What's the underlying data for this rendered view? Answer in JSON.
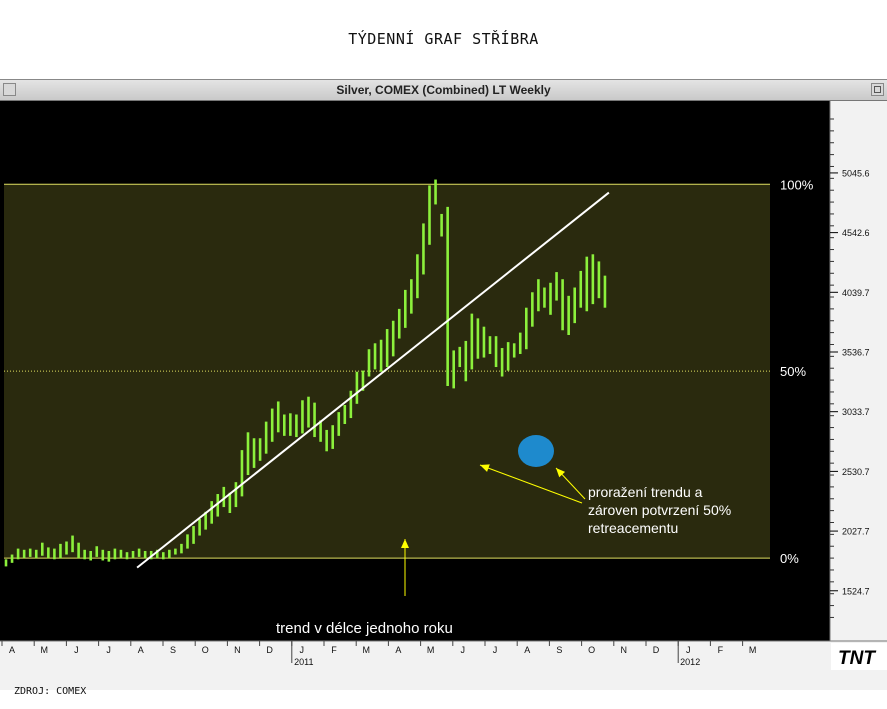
{
  "page": {
    "title": "TÝDENNÍ GRAF STŘÍBRA",
    "source": "ZDROJ: COMEX"
  },
  "chart_header": "Silver, COMEX (Combined) LT Weekly",
  "logo_text": "TNT",
  "colors": {
    "background": "#000000",
    "bars": "#8cf03c",
    "fill": "#2a2a0e",
    "level_lines": "#e0e060",
    "trendline": "#ffffff",
    "annotation": "#ffff00",
    "highlight": "#1e8fd8"
  },
  "annotations": {
    "trend_label": "trend v délce jednoho roku",
    "breakout_line1": "proražení trendu a",
    "breakout_line2": "zároven potvrzení 50%",
    "breakout_line3": "retreacementu"
  },
  "chart_data": {
    "type": "bar",
    "title": "Silver, COMEX (Combined) LT Weekly",
    "xlabel": "",
    "ylabel": "",
    "ylim": [
      1270,
      5500
    ],
    "y_ticks": [
      "5045.6",
      "4542.6",
      "4039.7",
      "3536.7",
      "3033.7",
      "2530.7",
      "2027.7",
      "1524.7"
    ],
    "y_tick_values": [
      5045.6,
      4542.6,
      4039.7,
      3536.7,
      3033.7,
      2530.7,
      2027.7,
      1524.7
    ],
    "x_ticks": [
      "A",
      "M",
      "J",
      "J",
      "A",
      "S",
      "O",
      "N",
      "D",
      "J",
      "F",
      "M",
      "A",
      "M",
      "J",
      "J",
      "A",
      "S",
      "O",
      "N",
      "D",
      "J",
      "F",
      "M"
    ],
    "year_labels": [
      {
        "label": "2011",
        "index": 9
      },
      {
        "label": "2012",
        "index": 21
      }
    ],
    "retracement_levels": [
      {
        "label": "100%",
        "value": 4950
      },
      {
        "label": "50%",
        "value": 3375
      },
      {
        "label": "0%",
        "value": 1800
      }
    ],
    "trendline": {
      "from": {
        "week": 22,
        "value": 1720
      },
      "to": {
        "week": 98,
        "value": 4880
      }
    },
    "weeks": 104,
    "series": [
      {
        "ohlc_week_start": 0,
        "bars": [
          [
            1730,
            1790
          ],
          [
            1760,
            1830
          ],
          [
            1790,
            1880
          ],
          [
            1800,
            1870
          ],
          [
            1810,
            1880
          ],
          [
            1800,
            1870
          ],
          [
            1820,
            1930
          ],
          [
            1800,
            1890
          ],
          [
            1790,
            1880
          ],
          [
            1800,
            1920
          ],
          [
            1830,
            1940
          ],
          [
            1850,
            1990
          ],
          [
            1800,
            1930
          ],
          [
            1790,
            1870
          ],
          [
            1780,
            1860
          ],
          [
            1810,
            1900
          ],
          [
            1780,
            1870
          ],
          [
            1770,
            1860
          ],
          [
            1790,
            1880
          ],
          [
            1800,
            1870
          ],
          [
            1790,
            1850
          ],
          [
            1800,
            1860
          ],
          [
            1810,
            1880
          ],
          [
            1800,
            1860
          ],
          [
            1790,
            1860
          ],
          [
            1800,
            1870
          ],
          [
            1790,
            1850
          ],
          [
            1800,
            1870
          ],
          [
            1830,
            1880
          ],
          [
            1840,
            1920
          ],
          [
            1880,
            2000
          ],
          [
            1920,
            2070
          ],
          [
            1990,
            2130
          ],
          [
            2040,
            2190
          ],
          [
            2090,
            2280
          ],
          [
            2150,
            2340
          ],
          [
            2230,
            2400
          ],
          [
            2180,
            2350
          ],
          [
            2230,
            2440
          ],
          [
            2320,
            2710
          ],
          [
            2500,
            2860
          ],
          [
            2560,
            2810
          ],
          [
            2620,
            2810
          ],
          [
            2680,
            2950
          ],
          [
            2780,
            3060
          ],
          [
            2860,
            3120
          ],
          [
            2830,
            3010
          ],
          [
            2830,
            3020
          ],
          [
            2820,
            3010
          ],
          [
            2850,
            3130
          ],
          [
            2900,
            3160
          ],
          [
            2820,
            3110
          ],
          [
            2780,
            2960
          ],
          [
            2700,
            2880
          ],
          [
            2720,
            2920
          ],
          [
            2830,
            3030
          ],
          [
            2930,
            3090
          ],
          [
            2980,
            3210
          ],
          [
            3100,
            3370
          ],
          [
            3210,
            3380
          ],
          [
            3330,
            3560
          ],
          [
            3390,
            3610
          ],
          [
            3370,
            3640
          ],
          [
            3410,
            3730
          ],
          [
            3500,
            3800
          ],
          [
            3650,
            3900
          ],
          [
            3740,
            4060
          ],
          [
            3860,
            4150
          ],
          [
            3990,
            4360
          ],
          [
            4190,
            4620
          ],
          [
            4440,
            4940
          ],
          [
            4780,
            4990
          ],
          [
            4510,
            4700
          ],
          [
            3250,
            4760
          ],
          [
            3230,
            3550
          ],
          [
            3410,
            3580
          ],
          [
            3290,
            3630
          ],
          [
            3390,
            3860
          ],
          [
            3480,
            3820
          ],
          [
            3490,
            3750
          ],
          [
            3520,
            3670
          ],
          [
            3410,
            3670
          ],
          [
            3330,
            3570
          ],
          [
            3380,
            3620
          ],
          [
            3490,
            3610
          ],
          [
            3520,
            3700
          ],
          [
            3560,
            3910
          ],
          [
            3750,
            4040
          ],
          [
            3880,
            4150
          ],
          [
            3910,
            4080
          ],
          [
            3850,
            4120
          ],
          [
            3970,
            4210
          ],
          [
            3720,
            4150
          ],
          [
            3680,
            4010
          ],
          [
            3780,
            4080
          ],
          [
            3910,
            4220
          ],
          [
            3880,
            4340
          ],
          [
            3940,
            4360
          ],
          [
            3990,
            4300
          ],
          [
            3910,
            4180
          ]
        ]
      }
    ]
  }
}
